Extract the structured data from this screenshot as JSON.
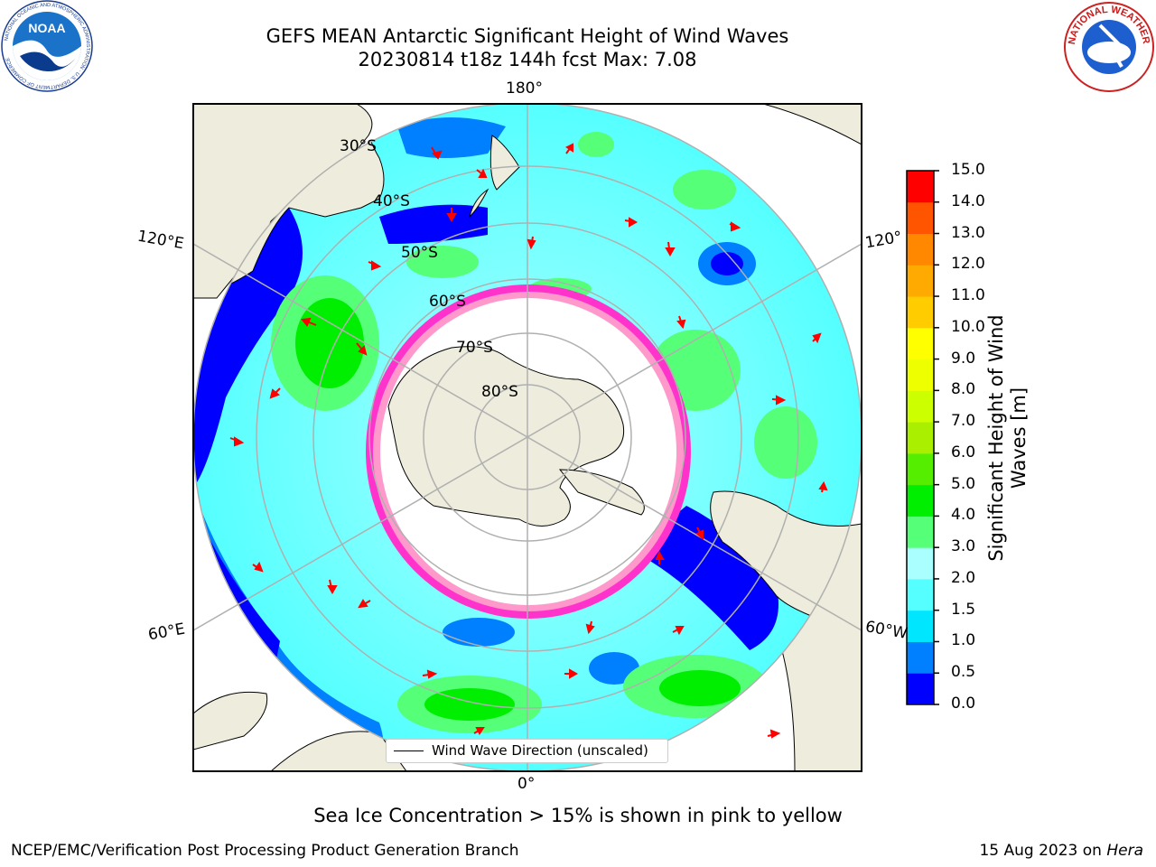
{
  "title": {
    "line1": "GEFS MEAN Antarctic Significant Height of Wind Waves",
    "line2": "20230814 t18z 144h fcst   Max: 7.08"
  },
  "logos": {
    "left": {
      "name": "noaa-logo",
      "text": "NOAA",
      "ring_text": "NATIONAL OCEANIC AND ATMOSPHERIC ADMINISTRATION · U.S. DEPARTMENT OF COMMERCE"
    },
    "right": {
      "name": "nws-logo",
      "ring_text": "NATIONAL WEATHER SERVICE"
    }
  },
  "map": {
    "projection": "south-polar-stereographic",
    "longitude_labels": {
      "top": "180°",
      "left_upper": "120°E",
      "right_upper": "120°",
      "left_lower": "60°E",
      "right_lower": "60°W",
      "bottom": "0°"
    },
    "latitude_labels": [
      "30°S",
      "40°S",
      "50°S",
      "60°S",
      "70°S",
      "80°S"
    ],
    "legend": "Wind Wave Direction (unscaled)",
    "land_color": "#eeecdc",
    "ice_colors": [
      "#ff33cc",
      "#ff99cc",
      "#ffcc33"
    ],
    "arrow_color": "#ff0000"
  },
  "colorbar": {
    "title": "Significant Height of Wind Waves [m]",
    "ticks": [
      "0.0",
      "0.5",
      "1.0",
      "1.5",
      "2.0",
      "3.0",
      "4.0",
      "5.0",
      "6.0",
      "7.0",
      "8.0",
      "9.0",
      "10.0",
      "11.0",
      "12.0",
      "13.0",
      "14.0",
      "15.0"
    ],
    "colors": [
      "#0000ff",
      "#0080ff",
      "#00e6ff",
      "#55ffff",
      "#aaffff",
      "#55ff77",
      "#00ee00",
      "#55ee00",
      "#aaee00",
      "#ccff00",
      "#eeff00",
      "#ffff00",
      "#ffcc00",
      "#ffaa00",
      "#ff8800",
      "#ff5500",
      "#ff0000"
    ]
  },
  "note": "Sea Ice Concentration > 15% is shown in pink to yellow",
  "footer": {
    "left": "NCEP/EMC/Verification Post Processing Product Generation Branch",
    "right_prefix": "15 Aug 2023 on ",
    "right_host": "Hera"
  }
}
